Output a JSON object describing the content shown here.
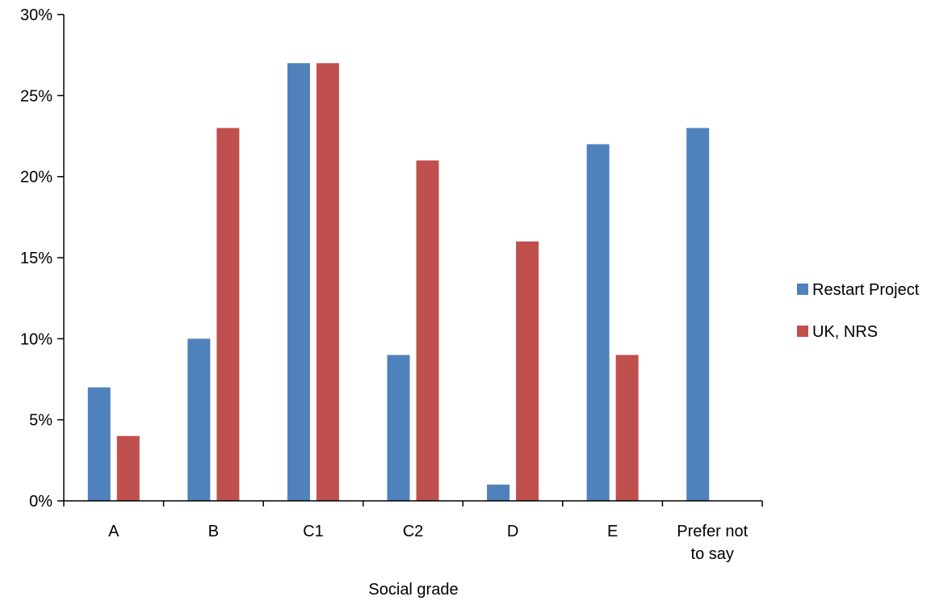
{
  "chart_data": {
    "type": "bar",
    "title": "",
    "xlabel": "Social grade",
    "ylabel": "",
    "ylim": [
      0,
      30
    ],
    "yticks": [
      "0%",
      "5%",
      "10%",
      "15%",
      "20%",
      "25%",
      "30%"
    ],
    "ytick_values": [
      0,
      5,
      10,
      15,
      20,
      25,
      30
    ],
    "grid": false,
    "legend_position": "right",
    "categories": [
      [
        "A"
      ],
      [
        "B"
      ],
      [
        "C1"
      ],
      [
        "C2"
      ],
      [
        "D"
      ],
      [
        "E"
      ],
      [
        "Prefer not",
        "to say"
      ]
    ],
    "series": [
      {
        "name": "Restart Project",
        "color": "#4f81bd",
        "values": [
          7,
          10,
          27,
          9,
          1,
          22,
          23
        ]
      },
      {
        "name": "UK, NRS",
        "color": "#c0504d",
        "values": [
          4,
          23,
          27,
          21,
          16,
          9,
          null
        ]
      }
    ]
  }
}
